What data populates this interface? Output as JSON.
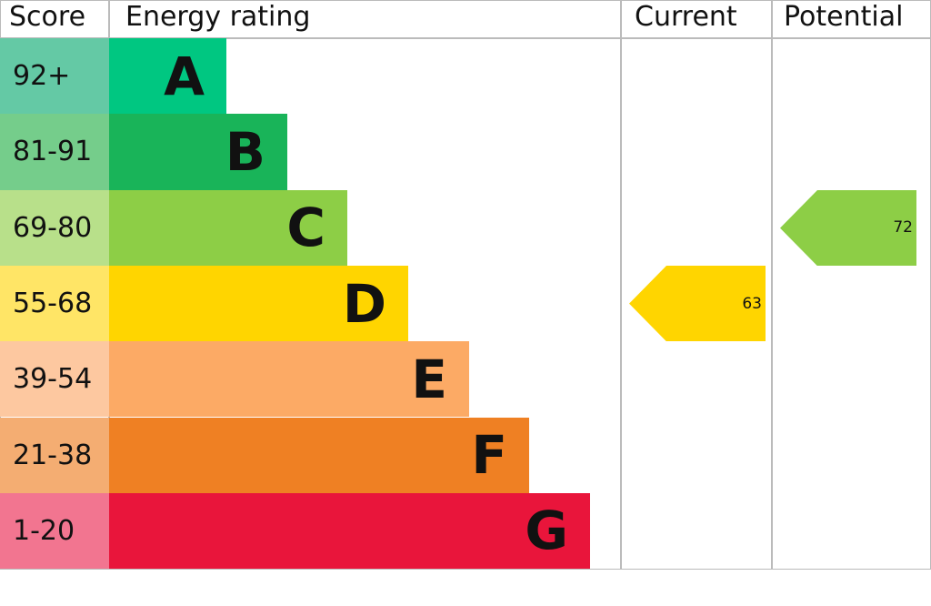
{
  "chart_data": {
    "type": "table",
    "headers": {
      "score": "Score",
      "rating": "Energy rating",
      "current": "Current",
      "potential": "Potential"
    },
    "bands": [
      {
        "letter": "A",
        "range": "92+",
        "color": "#00c781",
        "score_color": "#64c9a5"
      },
      {
        "letter": "B",
        "range": "81-91",
        "color": "#19b459",
        "score_color": "#75cd8b"
      },
      {
        "letter": "C",
        "range": "69-80",
        "color": "#8dce46",
        "score_color": "#b8e08a"
      },
      {
        "letter": "D",
        "range": "55-68",
        "color": "#ffd500",
        "score_color": "#ffe566"
      },
      {
        "letter": "E",
        "range": "39-54",
        "color": "#fcaa65",
        "score_color": "#fdc8a0"
      },
      {
        "letter": "F",
        "range": "21-38",
        "color": "#ef8023",
        "score_color": "#f4ad72"
      },
      {
        "letter": "G",
        "range": "1-20",
        "color": "#e9153b",
        "score_color": "#f27590"
      }
    ],
    "current": {
      "value": "63",
      "band": "D",
      "color": "#ffd500"
    },
    "potential": {
      "value": "72",
      "band": "C",
      "color": "#8dce46"
    }
  }
}
